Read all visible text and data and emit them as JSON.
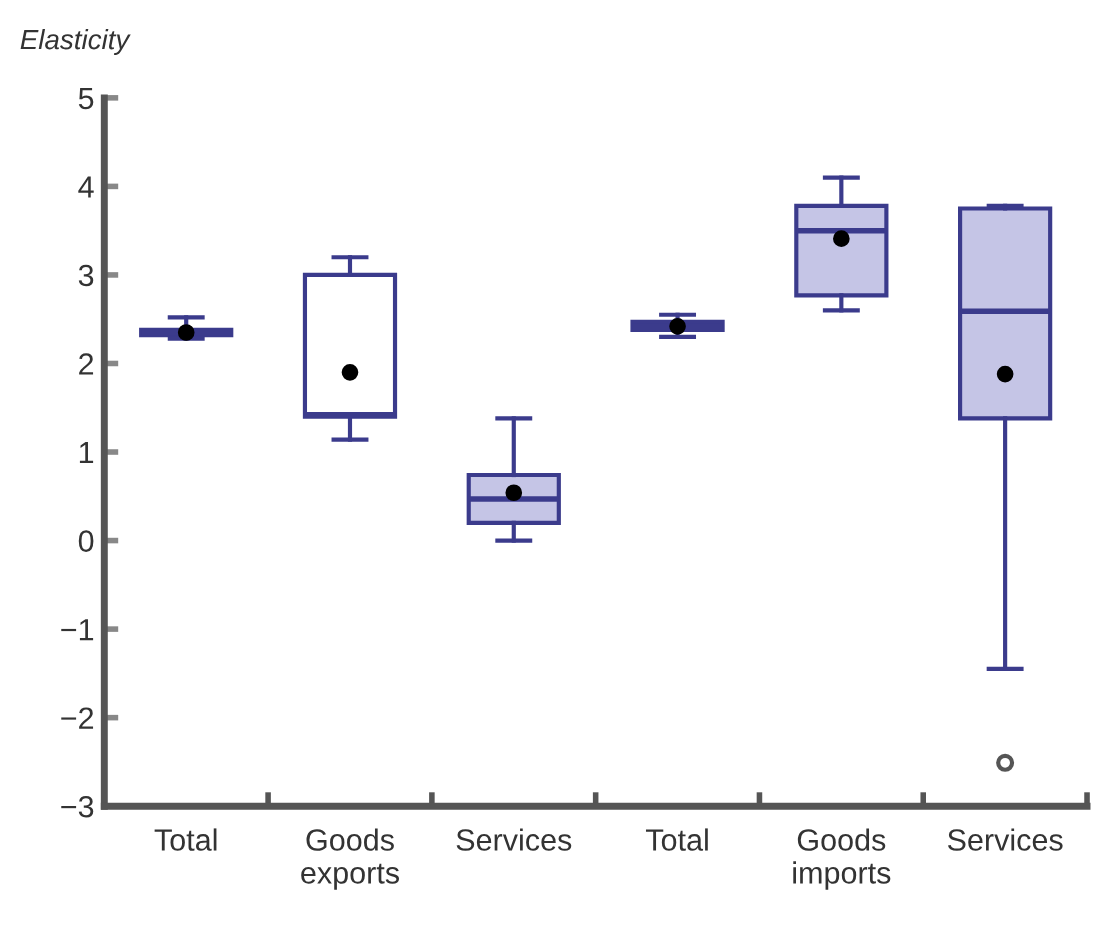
{
  "chart_data": {
    "type": "box",
    "ylabel": "Elasticity",
    "categories": [
      "Total",
      "Goods\nexports",
      "Services",
      "Total",
      "Goods\nimports",
      "Services"
    ],
    "boxes": [
      {
        "low": 2.28,
        "q1": 2.32,
        "median": 2.35,
        "q3": 2.38,
        "high": 2.52,
        "mean": 2.35
      },
      {
        "low": 1.14,
        "q1": 1.4,
        "median": 1.42,
        "q3": 3.0,
        "high": 3.2,
        "mean": 1.9
      },
      {
        "low": 0.0,
        "q1": 0.2,
        "median": 0.47,
        "q3": 0.74,
        "high": 1.38,
        "mean": 0.54
      },
      {
        "low": 2.3,
        "q1": 2.38,
        "median": 2.42,
        "q3": 2.47,
        "high": 2.55,
        "mean": 2.42
      },
      {
        "low": 2.6,
        "q1": 2.77,
        "median": 3.5,
        "q3": 3.78,
        "high": 4.1,
        "mean": 3.41
      },
      {
        "low": -1.45,
        "q1": 1.38,
        "median": 2.59,
        "q3": 3.75,
        "high": 3.78,
        "mean": 1.88,
        "outliers": [
          -2.51
        ]
      }
    ],
    "color": "#3b3b8c",
    "colors": [
      "#c5c5e6",
      "#ffffff",
      "#c5c5e6",
      "#c5c5e6",
      "#c5c5e6",
      "#c5c5e6"
    ],
    "ylim": [
      -3,
      5
    ],
    "yticks": [
      {
        "value": -3,
        "label": "−3"
      },
      {
        "value": -2,
        "label": "−2"
      },
      {
        "value": -1,
        "label": "−1"
      },
      0,
      1,
      2,
      3,
      4,
      5
    ],
    "grid": false
  }
}
